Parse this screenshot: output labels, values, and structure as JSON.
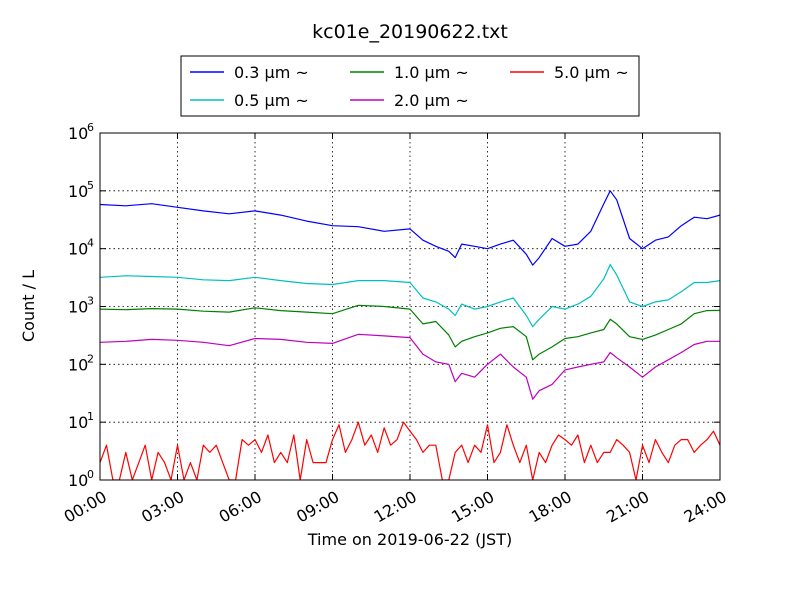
{
  "chart_data": {
    "type": "line",
    "title": "kc01e_20190622.txt",
    "xlabel": "Time on 2019-06-22 (JST)",
    "ylabel": "Count / L",
    "yscale": "log",
    "ylim": [
      1,
      1000000
    ],
    "xlim": [
      "00:00",
      "24:00"
    ],
    "grid": true,
    "legend_position": "top-center",
    "x_ticks": [
      "00:00",
      "03:00",
      "06:00",
      "09:00",
      "12:00",
      "15:00",
      "18:00",
      "21:00",
      "24:00"
    ],
    "y_ticks": [
      {
        "base": "10",
        "exp": "0",
        "value": 1
      },
      {
        "base": "10",
        "exp": "1",
        "value": 10
      },
      {
        "base": "10",
        "exp": "2",
        "value": 100
      },
      {
        "base": "10",
        "exp": "3",
        "value": 1000
      },
      {
        "base": "10",
        "exp": "4",
        "value": 10000
      },
      {
        "base": "10",
        "exp": "5",
        "value": 100000
      },
      {
        "base": "10",
        "exp": "6",
        "value": 1000000
      }
    ],
    "series": [
      {
        "name": "0.3 µm ~",
        "color": "#0000ff",
        "x": [
          "00:00",
          "01:00",
          "02:00",
          "03:00",
          "04:00",
          "05:00",
          "06:00",
          "07:00",
          "08:00",
          "09:00",
          "10:00",
          "11:00",
          "12:00",
          "12:30",
          "13:00",
          "13:30",
          "13:45",
          "14:00",
          "14:30",
          "15:00",
          "15:30",
          "16:00",
          "16:30",
          "16:45",
          "17:00",
          "17:30",
          "18:00",
          "18:30",
          "19:00",
          "19:30",
          "19:45",
          "20:00",
          "20:30",
          "21:00",
          "21:30",
          "22:00",
          "22:30",
          "23:00",
          "23:30",
          "24:00"
        ],
        "y": [
          58000,
          55000,
          60000,
          52000,
          45000,
          40000,
          45000,
          38000,
          30000,
          25000,
          24000,
          20000,
          22000,
          14000,
          11000,
          9000,
          7000,
          12000,
          11000,
          10000,
          12000,
          14000,
          8000,
          5200,
          7000,
          15000,
          11000,
          12000,
          20000,
          60000,
          100000,
          70000,
          15000,
          10000,
          14000,
          16000,
          25000,
          35000,
          33000,
          38000
        ]
      },
      {
        "name": "0.5 µm ~",
        "color": "#00bfbf",
        "x": [
          "00:00",
          "01:00",
          "02:00",
          "03:00",
          "04:00",
          "05:00",
          "06:00",
          "07:00",
          "08:00",
          "09:00",
          "10:00",
          "11:00",
          "12:00",
          "12:30",
          "13:00",
          "13:30",
          "13:45",
          "14:00",
          "14:30",
          "15:00",
          "15:30",
          "16:00",
          "16:30",
          "16:45",
          "17:00",
          "17:30",
          "18:00",
          "18:30",
          "19:00",
          "19:30",
          "19:45",
          "20:00",
          "20:30",
          "21:00",
          "21:30",
          "22:00",
          "22:30",
          "23:00",
          "23:30",
          "24:00"
        ],
        "y": [
          3200,
          3400,
          3300,
          3200,
          2900,
          2800,
          3200,
          2800,
          2500,
          2400,
          2800,
          2800,
          2600,
          1400,
          1200,
          900,
          700,
          1100,
          900,
          1000,
          1200,
          1400,
          700,
          450,
          600,
          1000,
          900,
          1100,
          1500,
          3000,
          5300,
          3500,
          1200,
          1000,
          1200,
          1300,
          1800,
          2600,
          2600,
          2800
        ]
      },
      {
        "name": "1.0 µm ~",
        "color": "#008000",
        "x": [
          "00:00",
          "01:00",
          "02:00",
          "03:00",
          "04:00",
          "05:00",
          "06:00",
          "07:00",
          "08:00",
          "09:00",
          "10:00",
          "11:00",
          "12:00",
          "12:30",
          "13:00",
          "13:30",
          "13:45",
          "14:00",
          "14:30",
          "15:00",
          "15:30",
          "16:00",
          "16:30",
          "16:45",
          "17:00",
          "17:30",
          "18:00",
          "18:30",
          "19:00",
          "19:30",
          "19:45",
          "20:00",
          "20:30",
          "21:00",
          "21:30",
          "22:00",
          "22:30",
          "23:00",
          "23:30",
          "24:00"
        ],
        "y": [
          900,
          880,
          920,
          900,
          830,
          800,
          950,
          850,
          800,
          750,
          1050,
          1000,
          900,
          500,
          550,
          320,
          200,
          250,
          300,
          350,
          420,
          450,
          300,
          120,
          150,
          200,
          280,
          300,
          350,
          400,
          600,
          500,
          300,
          270,
          320,
          400,
          500,
          750,
          850,
          860
        ]
      },
      {
        "name": "2.0 µm ~",
        "color": "#bf00bf",
        "x": [
          "00:00",
          "01:00",
          "02:00",
          "03:00",
          "04:00",
          "05:00",
          "06:00",
          "07:00",
          "08:00",
          "09:00",
          "10:00",
          "11:00",
          "12:00",
          "12:30",
          "13:00",
          "13:30",
          "13:45",
          "14:00",
          "14:30",
          "15:00",
          "15:30",
          "16:00",
          "16:30",
          "16:45",
          "17:00",
          "17:30",
          "18:00",
          "18:30",
          "19:00",
          "19:30",
          "19:45",
          "20:00",
          "20:30",
          "21:00",
          "21:30",
          "22:00",
          "22:30",
          "23:00",
          "23:30",
          "24:00"
        ],
        "y": [
          240,
          250,
          270,
          260,
          240,
          210,
          280,
          270,
          240,
          230,
          330,
          310,
          290,
          150,
          110,
          100,
          50,
          70,
          60,
          100,
          150,
          90,
          60,
          25,
          35,
          45,
          80,
          90,
          100,
          110,
          160,
          130,
          90,
          60,
          90,
          120,
          160,
          220,
          250,
          250
        ]
      },
      {
        "name": "5.0 µm ~",
        "color": "#ff0000",
        "x": [
          "00:00",
          "00:15",
          "00:30",
          "00:45",
          "01:00",
          "01:15",
          "01:30",
          "01:45",
          "02:00",
          "02:15",
          "02:30",
          "02:45",
          "03:00",
          "03:15",
          "03:30",
          "03:45",
          "04:00",
          "04:15",
          "04:30",
          "04:45",
          "05:00",
          "05:15",
          "05:30",
          "05:45",
          "06:00",
          "06:15",
          "06:30",
          "06:45",
          "07:00",
          "07:15",
          "07:30",
          "07:45",
          "08:00",
          "08:15",
          "08:30",
          "08:45",
          "09:00",
          "09:15",
          "09:30",
          "09:45",
          "10:00",
          "10:15",
          "10:30",
          "10:45",
          "11:00",
          "11:15",
          "11:30",
          "11:45",
          "12:00",
          "12:15",
          "12:30",
          "12:45",
          "13:00",
          "13:15",
          "13:30",
          "13:45",
          "14:00",
          "14:15",
          "14:30",
          "14:45",
          "15:00",
          "15:15",
          "15:30",
          "15:45",
          "16:00",
          "16:15",
          "16:30",
          "16:45",
          "17:00",
          "17:15",
          "17:30",
          "17:45",
          "18:00",
          "18:15",
          "18:30",
          "18:45",
          "19:00",
          "19:15",
          "19:30",
          "19:45",
          "20:00",
          "20:15",
          "20:30",
          "20:45",
          "21:00",
          "21:15",
          "21:30",
          "21:45",
          "22:00",
          "22:15",
          "22:30",
          "22:45",
          "23:00",
          "23:15",
          "23:30",
          "23:45",
          "24:00"
        ],
        "y": [
          2,
          4,
          1,
          1,
          3,
          1,
          2,
          4,
          1,
          3,
          2,
          1,
          4,
          1,
          2,
          1,
          4,
          3,
          4,
          2,
          1,
          1,
          5,
          4,
          5,
          3,
          6,
          2,
          3,
          2,
          6,
          1,
          5,
          2,
          2,
          2,
          5,
          9,
          3,
          5,
          10,
          4,
          6,
          3,
          8,
          4,
          5,
          10,
          7,
          5,
          3,
          4,
          4,
          1,
          1,
          3,
          4,
          2,
          4,
          3,
          9,
          2,
          3,
          9,
          4,
          2,
          4,
          1,
          3,
          2,
          4,
          6,
          5,
          4,
          6,
          2,
          4,
          2,
          3,
          3,
          5,
          4,
          3,
          1,
          4,
          2,
          5,
          3,
          2,
          4,
          5,
          5,
          3,
          4,
          5,
          7,
          4
        ]
      }
    ]
  }
}
